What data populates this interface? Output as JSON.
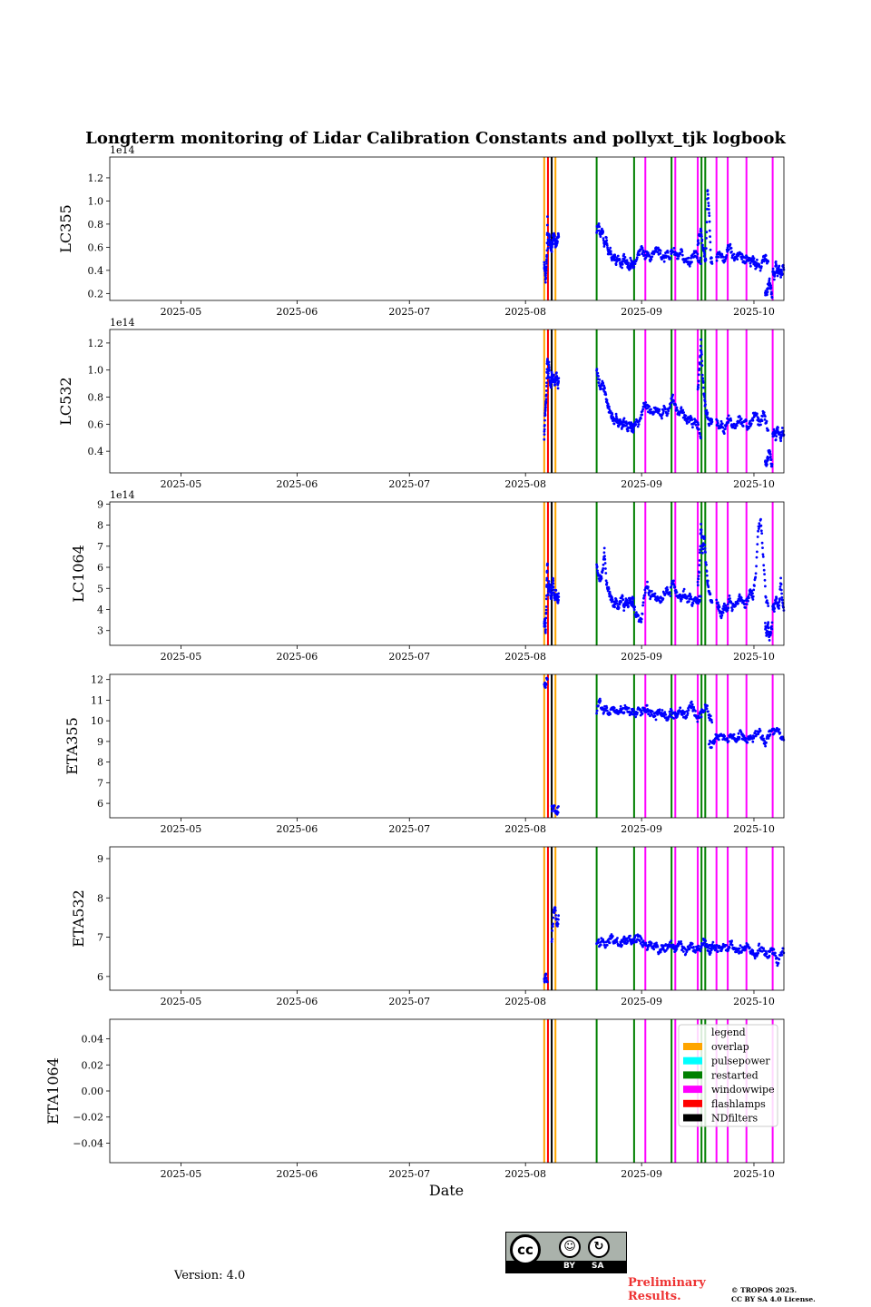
{
  "chart_data": {
    "type": "scatter",
    "title": "Longterm monitoring of Lidar Calibration Constants and pollyxt_tjk logbook",
    "xlabel": "Date",
    "x_range": [
      "2025-04-12",
      "2025-10-09"
    ],
    "x_ticks": [
      "2025-05",
      "2025-06",
      "2025-07",
      "2025-08",
      "2025-09",
      "2025-10"
    ],
    "x_tick_dates": [
      "2025-05-01",
      "2025-06-01",
      "2025-07-01",
      "2025-08-01",
      "2025-09-01",
      "2025-10-01"
    ],
    "series_color": "#0000ff",
    "legend": {
      "title": "legend",
      "location": "upper right",
      "entries": [
        {
          "label": "overlap",
          "color": "#ffa500"
        },
        {
          "label": "pulsepower",
          "color": "#00ffff"
        },
        {
          "label": "restarted",
          "color": "#008000"
        },
        {
          "label": "windowwipe",
          "color": "#ff00ff"
        },
        {
          "label": "flashlamps",
          "color": "#ff0000"
        },
        {
          "label": "NDfilters",
          "color": "#000000"
        }
      ]
    },
    "logbook_events": [
      {
        "date": "2025-08-06",
        "type": "overlap"
      },
      {
        "date": "2025-08-07",
        "type": "flashlamps"
      },
      {
        "date": "2025-08-08",
        "type": "NDfilters"
      },
      {
        "date": "2025-08-09",
        "type": "overlap"
      },
      {
        "date": "2025-08-20",
        "type": "restarted"
      },
      {
        "date": "2025-08-30",
        "type": "restarted"
      },
      {
        "date": "2025-09-02",
        "type": "windowwipe"
      },
      {
        "date": "2025-09-09",
        "type": "restarted"
      },
      {
        "date": "2025-09-10",
        "type": "windowwipe"
      },
      {
        "date": "2025-09-16",
        "type": "windowwipe"
      },
      {
        "date": "2025-09-17",
        "type": "restarted"
      },
      {
        "date": "2025-09-18",
        "type": "restarted"
      },
      {
        "date": "2025-09-21",
        "type": "windowwipe"
      },
      {
        "date": "2025-09-24",
        "type": "windowwipe"
      },
      {
        "date": "2025-09-29",
        "type": "windowwipe"
      },
      {
        "date": "2025-10-06",
        "type": "windowwipe"
      }
    ],
    "panels": [
      {
        "ylabel": "LC355",
        "ylim": [
          0.14,
          1.38
        ],
        "yticks": [
          0.2,
          0.4,
          0.6,
          0.8,
          1.0,
          1.2
        ],
        "ytick_labels": [
          "0.2",
          "0.4",
          "0.6",
          "0.8",
          "1.0",
          "1.2"
        ],
        "offset_label": "1e14",
        "segments": [
          {
            "start": "2025-08-06",
            "end": "2025-08-06",
            "values": [
              0.45,
              0.38,
              0.32,
              0.42,
              0.55,
              0.9
            ]
          },
          {
            "start": "2025-08-07",
            "end": "2025-08-09",
            "values": [
              0.62,
              0.72,
              0.65,
              0.6,
              0.58,
              0.68,
              0.7,
              0.66,
              0.62,
              0.64,
              0.69,
              0.72
            ]
          },
          {
            "start": "2025-08-20",
            "end": "2025-08-29",
            "values": [
              0.75,
              0.8,
              0.7,
              0.74,
              0.62,
              0.68,
              0.55,
              0.58,
              0.5,
              0.52,
              0.48,
              0.5,
              0.46,
              0.44,
              0.52,
              0.48,
              0.45,
              0.42,
              0.47,
              0.44
            ]
          },
          {
            "start": "2025-08-29",
            "end": "2025-09-16",
            "values": [
              0.48,
              0.44,
              0.5,
              0.56,
              0.58,
              0.52,
              0.55,
              0.5,
              0.54,
              0.6,
              0.56,
              0.53,
              0.5,
              0.55,
              0.52,
              0.58,
              0.54,
              0.5,
              0.56,
              0.48,
              0.5,
              0.46,
              0.52,
              0.55,
              0.5,
              0.47
            ]
          },
          {
            "start": "2025-09-16",
            "end": "2025-09-19",
            "values": [
              0.62,
              0.7,
              0.75,
              0.6,
              0.55,
              0.48,
              1.1,
              0.92,
              0.5,
              0.48
            ]
          },
          {
            "start": "2025-09-21",
            "end": "2025-10-04",
            "values": [
              0.5,
              0.55,
              0.52,
              0.48,
              0.56,
              0.62,
              0.54,
              0.5,
              0.52,
              0.55,
              0.5,
              0.48,
              0.52,
              0.46,
              0.5,
              0.44,
              0.48,
              0.42,
              0.5,
              0.52,
              0.45
            ]
          },
          {
            "start": "2025-10-04",
            "end": "2025-10-05",
            "values": [
              0.22,
              0.2,
              0.26,
              0.3,
              0.24,
              0.18
            ]
          },
          {
            "start": "2025-10-06",
            "end": "2025-10-09",
            "values": [
              0.4,
              0.35,
              0.45,
              0.38,
              0.42,
              0.36,
              0.4,
              0.44,
              0.38,
              0.35
            ]
          }
        ]
      },
      {
        "ylabel": "LC532",
        "ylim": [
          0.24,
          1.3
        ],
        "yticks": [
          0.4,
          0.6,
          0.8,
          1.0,
          1.2
        ],
        "ytick_labels": [
          "0.4",
          "0.6",
          "0.8",
          "1.0",
          "1.2"
        ],
        "offset_label": "1e14",
        "segments": [
          {
            "start": "2025-08-06",
            "end": "2025-08-06",
            "values": [
              0.5,
              0.65,
              0.72,
              0.8,
              1.0,
              1.1
            ]
          },
          {
            "start": "2025-08-07",
            "end": "2025-08-09",
            "values": [
              0.95,
              1.05,
              0.9,
              0.88,
              0.98,
              0.92,
              0.96,
              0.9,
              0.94,
              0.97,
              0.88,
              0.92
            ]
          },
          {
            "start": "2025-08-20",
            "end": "2025-08-29",
            "values": [
              1.0,
              0.92,
              0.88,
              0.9,
              0.85,
              0.78,
              0.72,
              0.68,
              0.66,
              0.62,
              0.65,
              0.6,
              0.63,
              0.58,
              0.62,
              0.6,
              0.57,
              0.6,
              0.58,
              0.56
            ]
          },
          {
            "start": "2025-08-29",
            "end": "2025-09-16",
            "values": [
              0.58,
              0.55,
              0.62,
              0.6,
              0.68,
              0.75,
              0.72,
              0.7,
              0.68,
              0.72,
              0.7,
              0.66,
              0.72,
              0.68,
              0.75,
              0.8,
              0.72,
              0.68,
              0.7,
              0.66,
              0.62,
              0.65,
              0.6,
              0.62,
              0.58,
              0.5
            ]
          },
          {
            "start": "2025-09-16",
            "end": "2025-09-19",
            "values": [
              0.85,
              1.0,
              1.2,
              0.95,
              0.8,
              0.7,
              0.66,
              0.6,
              0.62,
              0.64
            ]
          },
          {
            "start": "2025-09-21",
            "end": "2025-10-04",
            "values": [
              0.62,
              0.58,
              0.6,
              0.55,
              0.62,
              0.65,
              0.6,
              0.58,
              0.62,
              0.64,
              0.6,
              0.62,
              0.58,
              0.6,
              0.65,
              0.7,
              0.62,
              0.6,
              0.68,
              0.62,
              0.55
            ]
          },
          {
            "start": "2025-10-04",
            "end": "2025-10-05",
            "values": [
              0.32,
              0.3,
              0.36,
              0.42,
              0.34,
              0.28
            ]
          },
          {
            "start": "2025-10-06",
            "end": "2025-10-09",
            "values": [
              0.52,
              0.55,
              0.5,
              0.58,
              0.54,
              0.48,
              0.56,
              0.52,
              0.5,
              0.55
            ]
          }
        ]
      },
      {
        "ylabel": "LC1064",
        "ylim": [
          2.3,
          9.1
        ],
        "yticks": [
          3,
          4,
          5,
          6,
          7,
          8,
          9
        ],
        "ytick_labels": [
          "3",
          "4",
          "5",
          "6",
          "7",
          "8",
          "9"
        ],
        "offset_label": "1e14",
        "segments": [
          {
            "start": "2025-08-06",
            "end": "2025-08-06",
            "values": [
              3.2,
              3.5,
              3.0,
              4.0,
              5.6,
              6.2
            ]
          },
          {
            "start": "2025-08-07",
            "end": "2025-08-09",
            "values": [
              4.8,
              5.2,
              5.0,
              4.6,
              4.9,
              5.5,
              4.7,
              4.5,
              4.8,
              4.6,
              4.4,
              4.7
            ]
          },
          {
            "start": "2025-08-20",
            "end": "2025-08-29",
            "values": [
              6.0,
              5.6,
              5.4,
              5.8,
              6.8,
              5.2,
              5.0,
              4.6,
              4.4,
              4.2,
              4.5,
              4.0,
              4.3,
              4.6,
              4.1,
              4.4,
              4.2,
              4.5,
              4.3,
              4.6
            ]
          },
          {
            "start": "2025-08-29",
            "end": "2025-09-16",
            "values": [
              4.5,
              4.2,
              3.8,
              3.6,
              3.5,
              4.8,
              5.2,
              4.6,
              4.8,
              4.5,
              4.6,
              4.4,
              4.8,
              5.0,
              4.7,
              5.4,
              4.8,
              4.6,
              4.5,
              4.8,
              4.4,
              4.6,
              4.3,
              4.5,
              4.4,
              4.6
            ]
          },
          {
            "start": "2025-09-16",
            "end": "2025-09-19",
            "values": [
              5.2,
              6.0,
              8.0,
              6.8,
              7.5,
              6.2,
              5.4,
              4.8,
              4.5,
              4.4
            ]
          },
          {
            "start": "2025-09-21",
            "end": "2025-10-04",
            "values": [
              4.4,
              4.0,
              3.7,
              4.2,
              3.9,
              4.5,
              4.1,
              4.3,
              4.2,
              4.6,
              4.4,
              4.2,
              4.5,
              4.9,
              4.6,
              5.5,
              7.8,
              8.2,
              6.5,
              4.5,
              4.2
            ]
          },
          {
            "start": "2025-10-04",
            "end": "2025-10-05",
            "values": [
              3.2,
              2.8,
              3.4,
              2.6,
              3.0,
              3.3
            ]
          },
          {
            "start": "2025-10-06",
            "end": "2025-10-09",
            "values": [
              4.2,
              4.0,
              4.5,
              4.3,
              4.1,
              5.4,
              4.4,
              4.0,
              4.2,
              4.3
            ]
          }
        ]
      },
      {
        "ylabel": "ETA355",
        "ylim": [
          5.3,
          12.25
        ],
        "yticks": [
          6,
          7,
          8,
          9,
          10,
          11,
          12
        ],
        "ytick_labels": [
          "6",
          "7",
          "8",
          "9",
          "10",
          "11",
          "12"
        ],
        "offset_label": "",
        "segments": [
          {
            "start": "2025-08-06",
            "end": "2025-08-06",
            "values": [
              11.6,
              11.8,
              12.1
            ]
          },
          {
            "start": "2025-08-08",
            "end": "2025-08-09",
            "values": [
              5.7,
              5.8,
              5.6,
              5.7
            ]
          },
          {
            "start": "2025-08-20",
            "end": "2025-09-19",
            "values": [
              10.5,
              11.0,
              10.4,
              10.7,
              10.3,
              10.6,
              10.5,
              10.4,
              10.6,
              10.5,
              10.7,
              10.4,
              10.5,
              10.3,
              10.6,
              10.4,
              10.5,
              10.6,
              10.3,
              10.4,
              10.2,
              10.5,
              10.4,
              10.3,
              10.1,
              10.4,
              10.2,
              10.3,
              10.5,
              10.4,
              10.2,
              10.6,
              10.8,
              10.4,
              10.1,
              10.3,
              10.5,
              10.7,
              10.2,
              10.0
            ]
          },
          {
            "start": "2025-09-19",
            "end": "2025-10-09",
            "values": [
              8.9,
              8.8,
              9.2,
              9.1,
              9.3,
              9.2,
              9.0,
              9.3,
              9.2,
              9.1,
              9.4,
              9.2,
              9.0,
              9.3,
              9.1,
              9.4,
              9.5,
              9.2,
              8.8,
              9.3,
              9.6,
              9.4,
              9.5,
              9.3,
              9.2,
              9.4
            ]
          }
        ]
      },
      {
        "ylabel": "ETA532",
        "ylim": [
          5.65,
          9.3
        ],
        "yticks": [
          6,
          7,
          8,
          9
        ],
        "ytick_labels": [
          "6",
          "7",
          "8",
          "9"
        ],
        "offset_label": "",
        "segments": [
          {
            "start": "2025-08-06",
            "end": "2025-08-06",
            "values": [
              5.9,
              6.0,
              5.8
            ]
          },
          {
            "start": "2025-08-08",
            "end": "2025-08-09",
            "values": [
              6.9,
              7.6,
              7.7,
              7.3,
              7.5
            ]
          },
          {
            "start": "2025-08-20",
            "end": "2025-09-19",
            "values": [
              6.9,
              6.85,
              6.95,
              6.8,
              6.9,
              7.0,
              6.85,
              6.9,
              6.8,
              6.95,
              6.9,
              7.0,
              6.85,
              6.95,
              7.0,
              6.9,
              6.8,
              6.75,
              6.9,
              6.7,
              6.8,
              6.6,
              6.75,
              6.7,
              6.8,
              6.85,
              6.7,
              6.75,
              6.9,
              6.7,
              6.6,
              6.7,
              6.8,
              6.65,
              6.75,
              6.7,
              6.9,
              6.8,
              6.6,
              6.7
            ]
          },
          {
            "start": "2025-09-19",
            "end": "2025-10-09",
            "values": [
              6.7,
              6.8,
              6.75,
              6.7,
              6.65,
              6.8,
              6.7,
              6.85,
              6.75,
              6.6,
              6.7,
              6.65,
              6.8,
              6.7,
              6.6,
              6.5,
              6.75,
              6.7,
              6.6,
              6.55,
              6.7,
              6.6,
              6.3,
              6.6,
              6.7,
              6.8
            ]
          }
        ]
      },
      {
        "ylabel": "ETA1064",
        "ylim": [
          -0.055,
          0.055
        ],
        "yticks": [
          -0.04,
          -0.02,
          0.0,
          0.02,
          0.04
        ],
        "ytick_labels": [
          "−0.04",
          "−0.02",
          "0.00",
          "0.02",
          "0.04"
        ],
        "offset_label": "",
        "segments": []
      }
    ]
  },
  "footer": {
    "version": "Version: 4.0",
    "preliminary_line1": "Preliminary",
    "preliminary_line2": "Results.",
    "copyright_line1": "© TROPOS 2025.",
    "copyright_line2": "CC BY SA 4.0 License.",
    "cc_badge": {
      "cc": "cc",
      "by": "BY",
      "sa": "SA"
    }
  }
}
